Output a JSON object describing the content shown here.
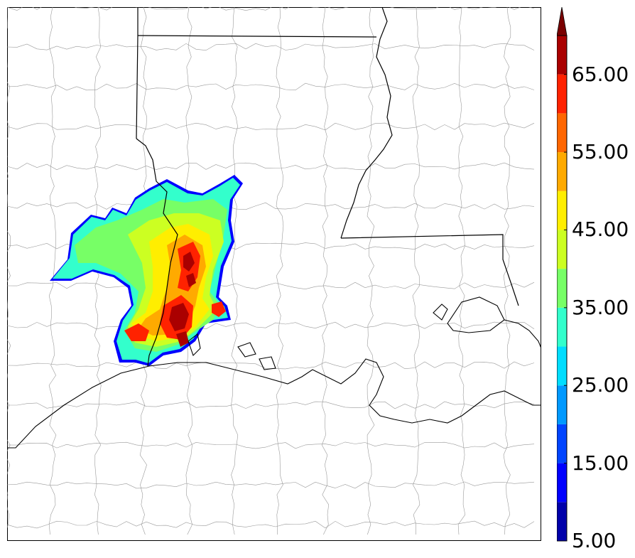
{
  "colorbar": {
    "tick_labels": [
      "5.00",
      "15.00",
      "25.00",
      "35.00",
      "45.00",
      "55.00",
      "65.00"
    ],
    "levels": [
      5,
      10,
      15,
      20,
      25,
      30,
      35,
      40,
      45,
      50,
      55,
      60,
      65,
      70
    ],
    "colors": [
      "#0000aa",
      "#0000ff",
      "#0044ff",
      "#0099ff",
      "#00ddff",
      "#33ffcc",
      "#77ff66",
      "#ccff22",
      "#ffee00",
      "#ffaa00",
      "#ff6600",
      "#ff2200",
      "#aa0000"
    ],
    "extend_color": "#7a0000",
    "extend": "max"
  },
  "map": {
    "field_colors": {
      "edge": "#0000ff",
      "low": "#33ffcc",
      "mid": "#77ff66",
      "mid_high": "#ccff22",
      "high": "#ffee00",
      "higher": "#ffaa00",
      "very_high": "#ff2200",
      "max": "#aa0000"
    },
    "boundary_colors": {
      "state_line": "#000000",
      "county_line": "#999999",
      "coastline": "#000000"
    }
  }
}
